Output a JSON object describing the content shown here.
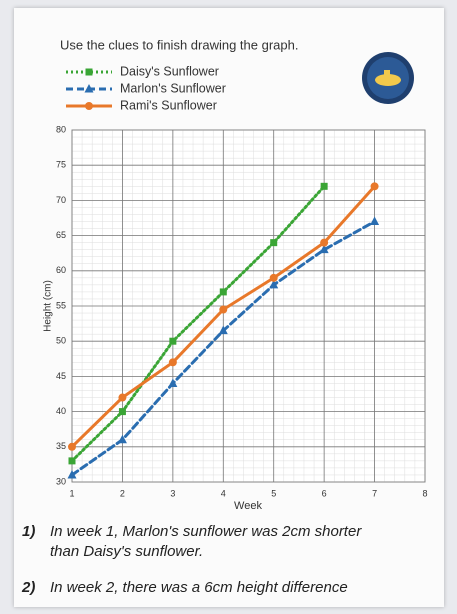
{
  "chart_data": {
    "type": "line",
    "title": "Use the clues to finish drawing the graph.",
    "x_label": "Week",
    "y_label": "Height (cm)",
    "x": [
      1,
      2,
      3,
      4,
      5,
      6,
      7,
      8
    ],
    "series": [
      {
        "name": "Daisy's Sunflower",
        "color": "#3aa535",
        "line_style": "dotted",
        "marker": "square",
        "values": [
          33,
          40,
          50,
          57,
          64,
          72,
          null,
          null
        ]
      },
      {
        "name": "Marlon's Sunflower",
        "color": "#2a6db0",
        "line_style": "dashed",
        "marker": "triangle",
        "values": [
          31,
          36,
          44,
          51.5,
          58,
          63,
          67,
          null
        ]
      },
      {
        "name": "Rami's Sunflower",
        "color": "#e8782a",
        "line_style": "solid",
        "marker": "circle",
        "values": [
          35,
          42,
          47,
          54.5,
          59,
          64,
          72,
          null
        ]
      }
    ],
    "xlim": [
      1,
      8
    ],
    "xticks": [
      1,
      2,
      3,
      4,
      5,
      6,
      7,
      8
    ],
    "ylim": [
      30,
      80
    ],
    "yticks": [
      30,
      35,
      40,
      45,
      50,
      55,
      60,
      65,
      70,
      75,
      80
    ],
    "grid": true,
    "legend": "top-left"
  },
  "clues": [
    {
      "number": "1)",
      "text": "In week 1, Marlon's sunflower was 2cm shorter than Daisy's sunflower."
    },
    {
      "number": "2)",
      "text": "In week 2, there was a 6cm height difference"
    }
  ]
}
